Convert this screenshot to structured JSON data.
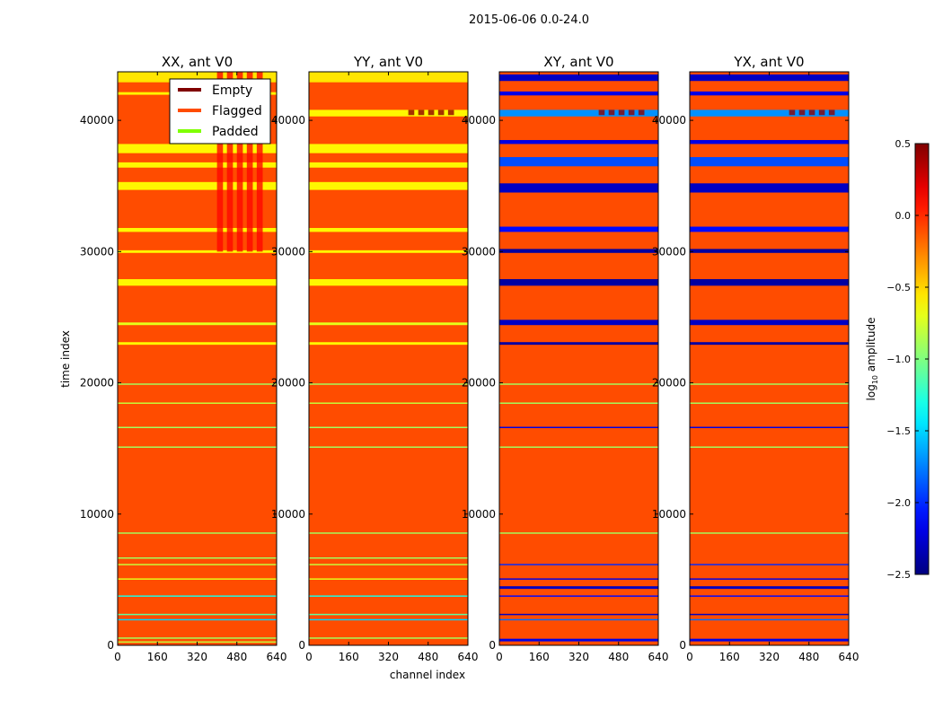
{
  "chart_data": {
    "type": "heatmap",
    "title": "2015-06-06 0.0-24.0",
    "xlabel": "channel index",
    "ylabel": "time index",
    "xlim": [
      0,
      640
    ],
    "ylim": [
      0,
      43700
    ],
    "xticks": [
      0,
      160,
      320,
      480,
      640
    ],
    "yticks": [
      0,
      10000,
      20000,
      30000,
      40000
    ],
    "colorbar": {
      "label": "log10 amplitude",
      "label_base": "log",
      "label_sub": "10",
      "label_rest": " amplitude",
      "range": [
        -2.5,
        0.5
      ],
      "ticks": [
        "0.5",
        "0.0",
        "−0.5",
        "−1.0",
        "−1.5",
        "−2.0",
        "−2.5"
      ],
      "tick_values": [
        0.5,
        0.0,
        -0.5,
        -1.0,
        -1.5,
        -2.0,
        -2.5
      ],
      "colormap": "jet"
    },
    "legend": {
      "placement": "upper-right of first panel",
      "items": [
        {
          "label": "Empty",
          "color": "#800000"
        },
        {
          "label": "Flagged",
          "color": "#ff4c00"
        },
        {
          "label": "Padded",
          "color": "#7fff00"
        }
      ]
    },
    "flagged_color": "#ff4c00",
    "panels": [
      {
        "title": "XX, ant V0",
        "stripes": [
          [
            42900,
            43700,
            -0.55
          ],
          [
            41950,
            42150,
            -0.6
          ],
          [
            37500,
            38200,
            -0.6
          ],
          [
            36400,
            36800,
            -0.6
          ],
          [
            34700,
            35300,
            -0.6
          ],
          [
            31500,
            31800,
            -0.6
          ],
          [
            29900,
            30100,
            -0.6
          ],
          [
            27400,
            27900,
            -0.6
          ],
          [
            24400,
            24600,
            -0.7
          ],
          [
            22900,
            23100,
            -0.6
          ],
          [
            19850,
            19950,
            -0.9
          ],
          [
            18400,
            18500,
            -0.8
          ],
          [
            16550,
            16650,
            -0.9
          ],
          [
            15050,
            15150,
            -0.9
          ],
          [
            8500,
            8600,
            -0.9
          ],
          [
            6600,
            6700,
            -0.9
          ],
          [
            6100,
            6200,
            -0.8
          ],
          [
            5000,
            5100,
            -0.7
          ],
          [
            3700,
            3800,
            -1.3
          ],
          [
            2300,
            2400,
            -1.1
          ],
          [
            1900,
            2000,
            -1.5
          ],
          [
            500,
            600,
            -0.9
          ],
          [
            200,
            300,
            -0.8
          ]
        ],
        "band": [
          400,
          600,
          30000,
          43700,
          0.1
        ]
      },
      {
        "title": "YY, ant V0",
        "stripes": [
          [
            42900,
            43700,
            -0.55
          ],
          [
            40300,
            40800,
            -0.6
          ],
          [
            37500,
            38200,
            -0.6
          ],
          [
            36400,
            36800,
            -0.6
          ],
          [
            34700,
            35300,
            -0.6
          ],
          [
            31500,
            31800,
            -0.6
          ],
          [
            29900,
            30100,
            -0.6
          ],
          [
            27400,
            27900,
            -0.6
          ],
          [
            24400,
            24600,
            -0.7
          ],
          [
            22900,
            23100,
            -0.6
          ],
          [
            19850,
            19950,
            -0.9
          ],
          [
            18400,
            18500,
            -0.8
          ],
          [
            16550,
            16650,
            -0.9
          ],
          [
            15050,
            15150,
            -0.9
          ],
          [
            8500,
            8600,
            -0.9
          ],
          [
            6600,
            6700,
            -0.9
          ],
          [
            6100,
            6200,
            -0.8
          ],
          [
            5000,
            5100,
            -0.7
          ],
          [
            3700,
            3800,
            -1.3
          ],
          [
            2300,
            2400,
            -1.1
          ],
          [
            1900,
            2000,
            -1.5
          ],
          [
            500,
            600,
            -0.9
          ]
        ],
        "band": [
          400,
          600,
          40400,
          40800,
          0.45
        ]
      },
      {
        "title": "XY, ant V0",
        "stripes": [
          [
            43000,
            43500,
            -2.3
          ],
          [
            41900,
            42200,
            -2.2
          ],
          [
            40300,
            40800,
            -1.7
          ],
          [
            38200,
            38500,
            -2.2
          ],
          [
            36500,
            37200,
            -1.9
          ],
          [
            34500,
            35200,
            -2.3
          ],
          [
            31500,
            31900,
            -2.1
          ],
          [
            29900,
            30200,
            -2.4
          ],
          [
            27400,
            27900,
            -2.4
          ],
          [
            24400,
            24800,
            -2.3
          ],
          [
            22900,
            23100,
            -2.4
          ],
          [
            19850,
            19950,
            -0.9
          ],
          [
            18400,
            18500,
            -0.9
          ],
          [
            16550,
            16650,
            -2.2
          ],
          [
            15050,
            15150,
            -0.9
          ],
          [
            8500,
            8600,
            -0.9
          ],
          [
            6100,
            6200,
            -2.0
          ],
          [
            5000,
            5100,
            -2.2
          ],
          [
            4300,
            4500,
            -2.3
          ],
          [
            3700,
            3800,
            -2.1
          ],
          [
            2300,
            2400,
            -2.3
          ],
          [
            1900,
            2000,
            -1.8
          ],
          [
            300,
            500,
            -2.2
          ]
        ],
        "band": [
          400,
          600,
          40400,
          40800,
          0.45
        ]
      },
      {
        "title": "YX, ant V0",
        "stripes": [
          [
            43000,
            43500,
            -2.3
          ],
          [
            41900,
            42200,
            -2.2
          ],
          [
            40300,
            40800,
            -1.7
          ],
          [
            38200,
            38500,
            -2.2
          ],
          [
            36500,
            37200,
            -1.9
          ],
          [
            34500,
            35200,
            -2.3
          ],
          [
            31500,
            31900,
            -2.1
          ],
          [
            29900,
            30200,
            -2.4
          ],
          [
            27400,
            27900,
            -2.4
          ],
          [
            24400,
            24800,
            -2.3
          ],
          [
            22900,
            23100,
            -2.4
          ],
          [
            19850,
            19950,
            -0.9
          ],
          [
            18400,
            18500,
            -0.9
          ],
          [
            16550,
            16650,
            -2.2
          ],
          [
            15050,
            15150,
            -0.9
          ],
          [
            8500,
            8600,
            -0.9
          ],
          [
            6100,
            6200,
            -2.0
          ],
          [
            5000,
            5100,
            -2.2
          ],
          [
            4300,
            4500,
            -2.3
          ],
          [
            3700,
            3800,
            -2.1
          ],
          [
            2300,
            2400,
            -2.3
          ],
          [
            1900,
            2000,
            -1.8
          ],
          [
            300,
            500,
            -2.2
          ]
        ],
        "band": [
          400,
          600,
          40400,
          40800,
          0.45
        ]
      }
    ]
  }
}
